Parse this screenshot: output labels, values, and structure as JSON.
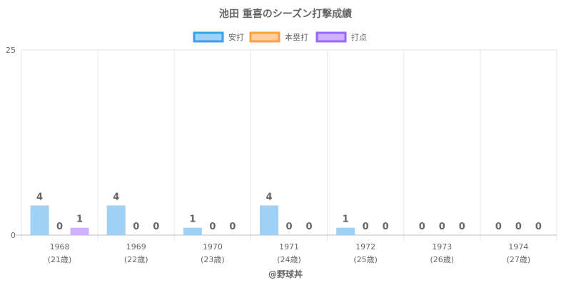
{
  "chart_data": {
    "type": "bar",
    "title": "池田 重喜のシーズン打撃成績",
    "xlabel": "@野球丼",
    "ylabel": "",
    "ylim": [
      0,
      25
    ],
    "y_ticks": [
      "0",
      "25"
    ],
    "grid": true,
    "legend_position": "top",
    "categories": [
      "1968",
      "1969",
      "1970",
      "1971",
      "1972",
      "1973",
      "1974"
    ],
    "ages": [
      "(21歳)",
      "(22歳)",
      "(23歳)",
      "(24歳)",
      "(25歳)",
      "(26歳)",
      "(27歳)"
    ],
    "series": [
      {
        "name": "安打",
        "values": [
          4,
          4,
          1,
          4,
          1,
          0,
          0
        ],
        "fill": "#9fd0f5",
        "stroke": "#36a2eb"
      },
      {
        "name": "本塁打",
        "values": [
          0,
          0,
          0,
          0,
          0,
          0,
          0
        ],
        "fill": "#ffcf9f",
        "stroke": "#ff9f40"
      },
      {
        "name": "打点",
        "values": [
          1,
          0,
          0,
          0,
          0,
          0,
          0
        ],
        "fill": "#ccb2ff",
        "stroke": "#9966ff"
      }
    ]
  }
}
